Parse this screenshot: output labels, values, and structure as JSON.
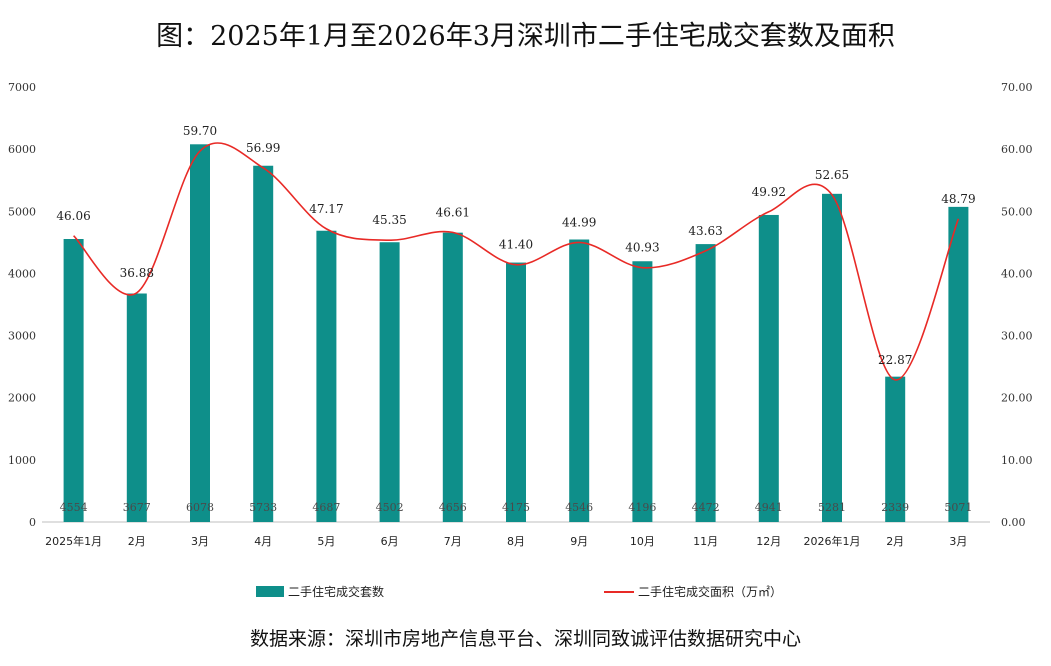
{
  "title": "图：2025年1月至2026年3月深圳市二手住宅成交套数及面积",
  "source": "数据来源：深圳市房地产信息平台、深圳同致诚评估数据研究中心",
  "colors": {
    "bar": "#0e8f8a",
    "line": "#e82a26"
  },
  "chart_data": {
    "type": "bar+line",
    "categories": [
      "2025年1月",
      "2月",
      "3月",
      "4月",
      "5月",
      "6月",
      "7月",
      "8月",
      "9月",
      "10月",
      "11月",
      "12月",
      "2026年1月",
      "2月",
      "3月"
    ],
    "series": [
      {
        "name": "二手住宅成交套数",
        "type": "bar",
        "axis": "left",
        "values": [
          4554,
          3677,
          6078,
          5733,
          4687,
          4502,
          4656,
          4175,
          4546,
          4196,
          4472,
          4941,
          5281,
          2339,
          5071
        ]
      },
      {
        "name": "二手住宅成交面积（万㎡）",
        "type": "line",
        "axis": "right",
        "values": [
          46.06,
          36.88,
          59.7,
          56.99,
          47.17,
          45.35,
          46.61,
          41.4,
          44.99,
          40.93,
          43.63,
          49.92,
          52.65,
          22.87,
          48.79
        ]
      }
    ],
    "y_left": {
      "min": 0,
      "max": 7000,
      "step": 1000,
      "ticks": [
        "0",
        "1000",
        "2000",
        "3000",
        "4000",
        "5000",
        "6000",
        "7000"
      ]
    },
    "y_right": {
      "min": 0,
      "max": 70,
      "step": 10,
      "ticks": [
        "0.00",
        "10.00",
        "20.00",
        "30.00",
        "40.00",
        "50.00",
        "60.00",
        "70.00"
      ]
    },
    "bar_labels": [
      "4554",
      "3677",
      "6078",
      "5733",
      "4687",
      "4502",
      "4656",
      "4175",
      "4546",
      "4196",
      "4472",
      "4941",
      "5281",
      "2339",
      "5071"
    ],
    "line_labels": [
      "46.06",
      "36.88",
      "59.70",
      "56.99",
      "47.17",
      "45.35",
      "46.61",
      "41.40",
      "44.99",
      "40.93",
      "43.63",
      "49.92",
      "52.65",
      "22.87",
      "48.79"
    ],
    "legend": {
      "bar": "二手住宅成交套数",
      "line": "二手住宅成交面积（万㎡）",
      "placement": "bottom"
    }
  }
}
